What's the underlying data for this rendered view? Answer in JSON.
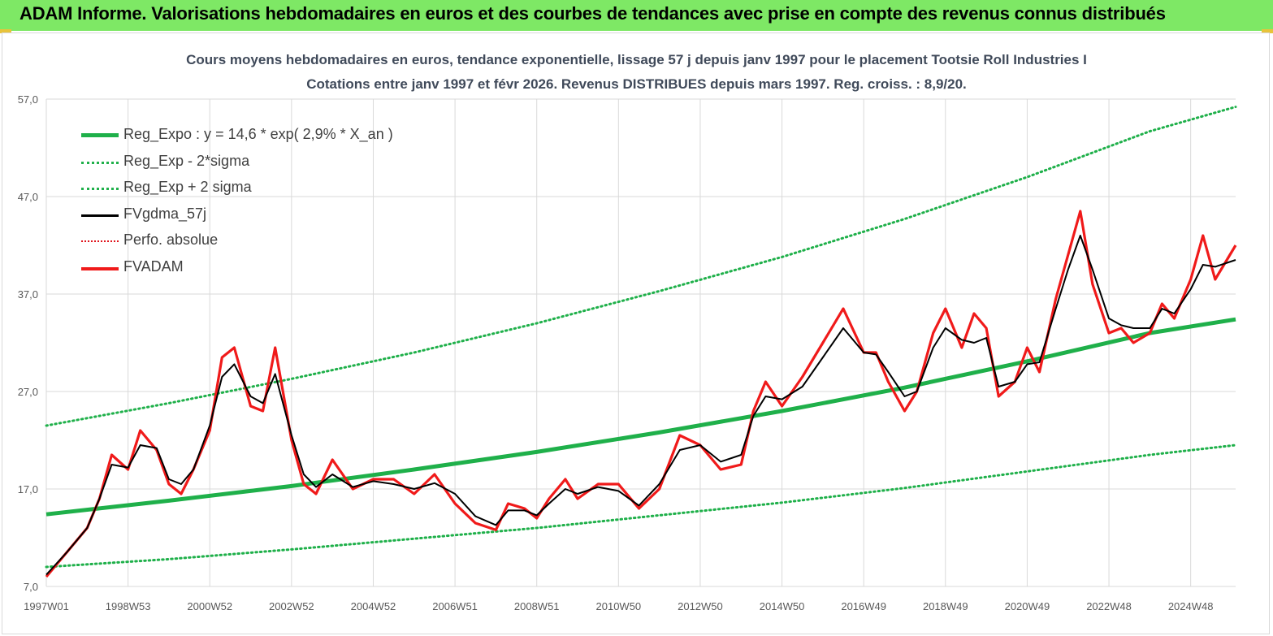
{
  "banner": {
    "title": "ADAM Informe. Valorisations hebdomadaires en euros et des courbes de tendances avec prise en compte des revenus connus distribués"
  },
  "chart_data": {
    "type": "line",
    "title": "Cours moyens hebdomadaires en euros, tendance exponentielle, lissage 57 j depuis janv 1997 pour le placement Tootsie Roll Industries I",
    "subtitle": "Cotations entre janv 1997 et févr 2026. Revenus DISTRIBUES depuis mars 1997. Reg. croiss. : 8,9/20.",
    "xlabel": "",
    "ylabel": "",
    "ylim": [
      7.0,
      57.0
    ],
    "xlim": [
      1997.0,
      2026.1
    ],
    "y_ticks": [
      "57,0",
      "47,0",
      "37,0",
      "27,0",
      "17,0",
      "7,0"
    ],
    "y_tick_values": [
      57,
      47,
      37,
      27,
      17,
      7
    ],
    "x_ticks": [
      "1997W01",
      "1998W53",
      "2000W52",
      "2002W52",
      "2004W52",
      "2006W51",
      "2008W51",
      "2010W50",
      "2012W50",
      "2014W50",
      "2016W49",
      "2018W49",
      "2020W49",
      "2022W48",
      "2024W48"
    ],
    "x_tick_values": [
      1997.0,
      1999.0,
      2001.0,
      2003.0,
      2005.0,
      2007.0,
      2009.0,
      2011.0,
      2013.0,
      2015.0,
      2017.0,
      2019.0,
      2021.0,
      2023.0,
      2025.0
    ],
    "grid": true,
    "legend_position": "top-left",
    "series": [
      {
        "name": "Reg_Expo : y = 14,6 * exp( 2,9% *  X_an )",
        "color": "#1fb04a",
        "style": "solid-thick",
        "x": [
          1997.0,
          2000.0,
          2003.0,
          2006.0,
          2009.0,
          2012.0,
          2015.0,
          2018.0,
          2021.0,
          2024.0,
          2026.1
        ],
        "y": [
          14.4,
          15.8,
          17.3,
          19.0,
          20.8,
          22.8,
          25.0,
          27.4,
          30.1,
          33.0,
          34.4
        ]
      },
      {
        "name": "Reg_Exp - 2*sigma",
        "color": "#1fb04a",
        "style": "dotted",
        "x": [
          1997.0,
          2000.0,
          2003.0,
          2006.0,
          2009.0,
          2012.0,
          2015.0,
          2018.0,
          2021.0,
          2024.0,
          2026.1
        ],
        "y": [
          9.0,
          9.8,
          10.8,
          11.9,
          13.0,
          14.3,
          15.6,
          17.1,
          18.8,
          20.5,
          21.5
        ]
      },
      {
        "name": "Reg_Exp + 2 sigma",
        "color": "#1fb04a",
        "style": "dotted",
        "x": [
          1997.0,
          2000.0,
          2003.0,
          2006.0,
          2009.0,
          2012.0,
          2015.0,
          2018.0,
          2021.0,
          2024.0,
          2026.1
        ],
        "y": [
          23.5,
          25.8,
          28.3,
          31.0,
          34.0,
          37.3,
          40.8,
          44.7,
          49.0,
          53.7,
          56.2
        ]
      },
      {
        "name": "FVgdma_57j",
        "color": "#000000",
        "style": "solid",
        "x": [
          1997.0,
          1997.5,
          1998.0,
          1998.3,
          1998.6,
          1999.0,
          1999.3,
          1999.7,
          2000.0,
          2000.3,
          2000.6,
          2001.0,
          2001.3,
          2001.6,
          2002.0,
          2002.3,
          2002.6,
          2003.0,
          2003.3,
          2003.6,
          2004.0,
          2004.5,
          2005.0,
          2005.5,
          2006.0,
          2006.5,
          2007.0,
          2007.5,
          2008.0,
          2008.3,
          2008.7,
          2009.0,
          2009.3,
          2009.7,
          2010.0,
          2010.5,
          2011.0,
          2011.5,
          2012.0,
          2012.5,
          2013.0,
          2013.5,
          2014.0,
          2014.3,
          2014.6,
          2015.0,
          2015.5,
          2016.0,
          2016.5,
          2017.0,
          2017.3,
          2017.6,
          2018.0,
          2018.3,
          2018.7,
          2019.0,
          2019.4,
          2019.7,
          2020.0,
          2020.3,
          2020.7,
          2021.0,
          2021.3,
          2021.7,
          2022.0,
          2022.3,
          2022.6,
          2023.0,
          2023.3,
          2023.6,
          2024.0,
          2024.3,
          2024.6,
          2025.0,
          2025.3,
          2025.6,
          2026.1
        ],
        "y": [
          8.2,
          10.5,
          13.0,
          16.0,
          19.5,
          19.2,
          21.5,
          21.2,
          18.0,
          17.5,
          19.0,
          23.5,
          28.5,
          29.8,
          26.5,
          25.8,
          28.8,
          22.5,
          18.5,
          17.2,
          18.5,
          17.2,
          17.8,
          17.5,
          17.0,
          17.6,
          16.5,
          14.2,
          13.3,
          14.8,
          14.8,
          14.3,
          15.5,
          17.0,
          16.5,
          17.2,
          16.8,
          15.3,
          17.5,
          21.0,
          21.5,
          19.8,
          20.5,
          24.5,
          26.5,
          26.2,
          27.5,
          30.5,
          33.5,
          31.0,
          30.8,
          29.0,
          26.5,
          27.0,
          31.5,
          33.5,
          32.3,
          32.0,
          32.5,
          27.5,
          28.0,
          29.8,
          30.0,
          35.5,
          39.5,
          43.0,
          39.5,
          34.5,
          33.8,
          33.5,
          33.5,
          35.5,
          35.0,
          37.5,
          40.0,
          39.8,
          40.5
        ]
      },
      {
        "name": "Perfo. absolue",
        "color": "#e0141c",
        "style": "dotted",
        "x": [],
        "y": []
      },
      {
        "name": "FVADAM",
        "color": "#f01a1a",
        "style": "solid-thick",
        "x": [
          1997.0,
          1997.5,
          1998.0,
          1998.3,
          1998.6,
          1999.0,
          1999.3,
          1999.7,
          2000.0,
          2000.3,
          2000.6,
          2001.0,
          2001.3,
          2001.6,
          2002.0,
          2002.3,
          2002.6,
          2003.0,
          2003.3,
          2003.6,
          2004.0,
          2004.5,
          2005.0,
          2005.5,
          2006.0,
          2006.5,
          2007.0,
          2007.5,
          2008.0,
          2008.3,
          2008.7,
          2009.0,
          2009.3,
          2009.7,
          2010.0,
          2010.5,
          2011.0,
          2011.5,
          2012.0,
          2012.5,
          2013.0,
          2013.5,
          2014.0,
          2014.3,
          2014.6,
          2015.0,
          2015.5,
          2016.0,
          2016.5,
          2017.0,
          2017.3,
          2017.6,
          2018.0,
          2018.3,
          2018.7,
          2019.0,
          2019.4,
          2019.7,
          2020.0,
          2020.3,
          2020.7,
          2021.0,
          2021.3,
          2021.7,
          2022.0,
          2022.3,
          2022.6,
          2023.0,
          2023.3,
          2023.6,
          2024.0,
          2024.3,
          2024.6,
          2025.0,
          2025.3,
          2025.6,
          2026.1
        ],
        "y": [
          8.0,
          10.5,
          13.0,
          16.0,
          20.5,
          19.0,
          23.0,
          21.0,
          17.5,
          16.5,
          19.0,
          23.0,
          30.5,
          31.5,
          25.5,
          25.0,
          31.5,
          22.0,
          17.5,
          16.5,
          20.0,
          17.0,
          18.0,
          18.0,
          16.5,
          18.5,
          15.5,
          13.5,
          12.8,
          15.5,
          15.0,
          14.0,
          16.0,
          18.0,
          16.0,
          17.5,
          17.5,
          15.0,
          17.0,
          22.5,
          21.5,
          19.0,
          19.5,
          25.0,
          28.0,
          25.5,
          28.5,
          32.0,
          35.5,
          31.0,
          31.0,
          28.0,
          25.0,
          27.0,
          33.0,
          35.5,
          31.5,
          35.0,
          33.5,
          26.5,
          28.0,
          31.5,
          29.0,
          36.5,
          41.0,
          45.5,
          38.0,
          33.0,
          33.5,
          32.0,
          33.0,
          36.0,
          34.5,
          38.5,
          43.0,
          38.5,
          42.0
        ]
      }
    ]
  }
}
